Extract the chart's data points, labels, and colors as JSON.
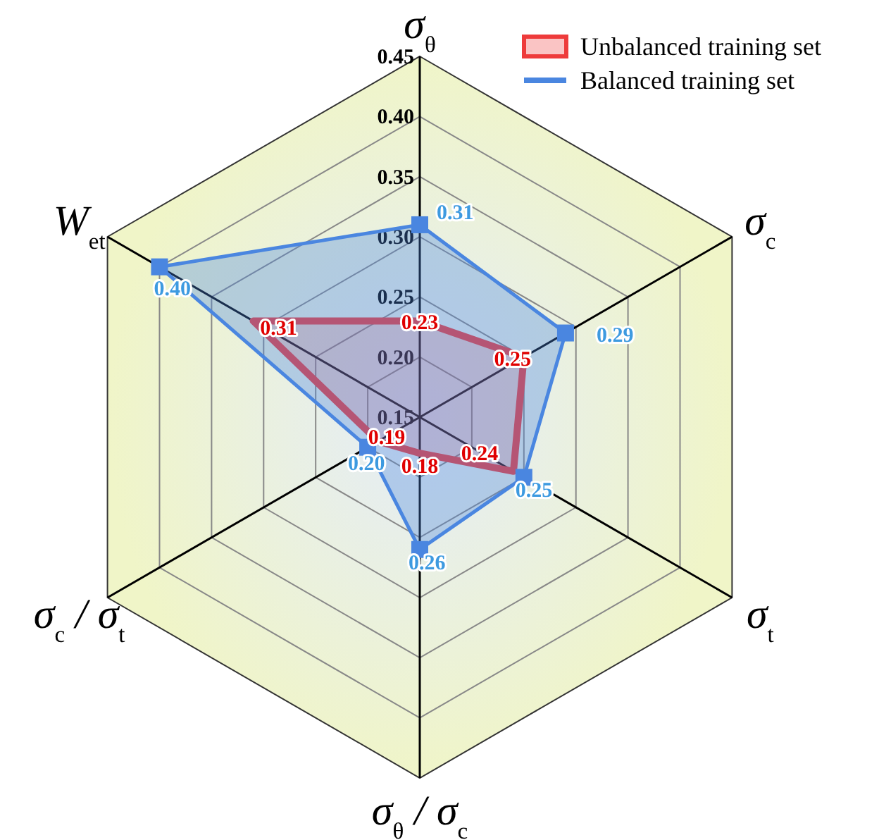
{
  "chart_data": {
    "type": "radar",
    "categories": [
      "σ$_{θ}$",
      "σ$_{c}$",
      "σ$_{t}$",
      "σ$_{θ}$ / σ$_{c}$",
      "σ$_{c}$ / σ$_{t}$",
      "W$_{et}$"
    ],
    "series": [
      {
        "name": "Unbalanced training set",
        "color": "#ee3b3b",
        "values": [
          0.23,
          0.25,
          0.24,
          0.18,
          0.19,
          0.31
        ],
        "value_labels": [
          "0.23",
          "0.25",
          "0.24",
          "0.18",
          "0.19",
          "0.31"
        ],
        "marker": "none"
      },
      {
        "name": "Balanced training set",
        "color": "#4a86e0",
        "values": [
          0.31,
          0.29,
          0.25,
          0.26,
          0.2,
          0.4
        ],
        "value_labels": [
          "0.31",
          "0.29",
          "0.25",
          "0.26",
          "0.20",
          "0.40"
        ],
        "marker": "square"
      }
    ],
    "ylim": [
      0.15,
      0.45
    ],
    "yticks": [
      0.15,
      {
        "value": 0.2,
        "label": "0.20"
      },
      0.25,
      {
        "value": 0.3,
        "label": "0.30"
      },
      0.35,
      {
        "value": 0.4,
        "label": "0.40"
      },
      0.45
    ],
    "grid": true,
    "legend": "top right"
  }
}
